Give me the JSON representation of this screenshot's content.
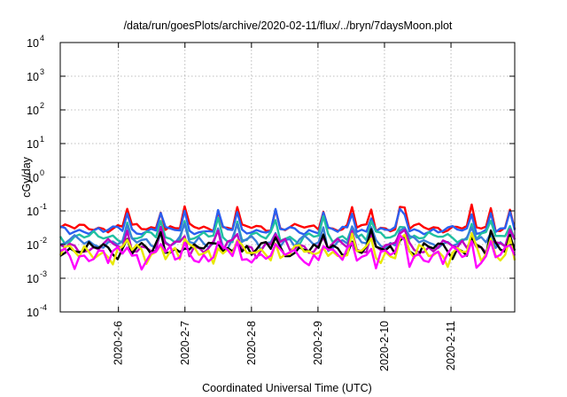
{
  "chart_data": {
    "type": "line",
    "title": "/data/run/goesPlots/archive/2020-02-11/flux/../bryn/7daysMoon.plot",
    "xlabel": "Coordinated Universal Time (UTC)",
    "ylabel": "cGy/day",
    "y_scale": "log",
    "ylim": [
      0.0001,
      10000
    ],
    "y_ticks": [
      {
        "value": 0.0001,
        "base": "10",
        "exp": "-4"
      },
      {
        "value": 0.001,
        "base": "10",
        "exp": "-3"
      },
      {
        "value": 0.01,
        "base": "10",
        "exp": "-2"
      },
      {
        "value": 0.1,
        "base": "10",
        "exp": "-1"
      },
      {
        "value": 1,
        "base": "10",
        "exp": "0"
      },
      {
        "value": 10,
        "base": "10",
        "exp": "1"
      },
      {
        "value": 100,
        "base": "10",
        "exp": "2"
      },
      {
        "value": 1000,
        "base": "10",
        "exp": "3"
      },
      {
        "value": 10000,
        "base": "10",
        "exp": "4"
      }
    ],
    "xlim": [
      "2020-02-05T03:00",
      "2020-02-11T23:00"
    ],
    "x_ticks": [
      "2020-2-6",
      "2020-2-7",
      "2020-2-8",
      "2020-2-9",
      "2020-2-10",
      "2020-2-11"
    ],
    "grid": true,
    "x_time_points": 96,
    "series": [
      {
        "color": "#ff0000",
        "base": 0.032,
        "spread": 0.25,
        "spike_gain": 1.6
      },
      {
        "color": "#2a5ff0",
        "base": 0.027,
        "spread": 0.25,
        "spike_gain": 1.5
      },
      {
        "color": "#20c0a0",
        "base": 0.017,
        "spread": 0.35,
        "spike_gain": 1.3
      },
      {
        "color": "#3a7ed8",
        "base": 0.012,
        "spread": 0.4,
        "spike_gain": 1.2
      },
      {
        "color": "#c000c0",
        "base": 0.009,
        "spread": 0.45,
        "spike_gain": 1.1
      },
      {
        "color": "#000000",
        "base": 0.0075,
        "spread": 0.45,
        "spike_gain": 1.1
      },
      {
        "color": "#e8e800",
        "base": 0.006,
        "spread": 0.5,
        "spike_gain": 1.0
      },
      {
        "color": "#ff00ff",
        "base": 0.005,
        "spread": 0.5,
        "spike_gain": 1.0
      }
    ],
    "spike_positions": [
      14,
      21,
      26,
      33,
      37,
      45,
      55,
      61,
      65,
      71,
      72,
      86,
      90,
      94
    ]
  }
}
